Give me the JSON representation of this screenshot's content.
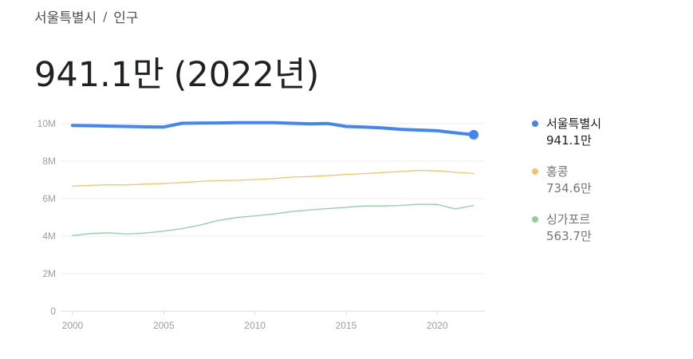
{
  "breadcrumb": {
    "region": "서울특별시",
    "separator": "/",
    "topic": "인구"
  },
  "headline": {
    "value": "941.1만",
    "year": "(2022년)"
  },
  "colors": {
    "seoul": "#4285f4",
    "hongkong": "#f2c46c",
    "singapore": "#8fd0a0",
    "grid": "#eeeeee",
    "axis_text": "#9aa0a6",
    "secondary_text": "#70757a"
  },
  "legend": [
    {
      "name": "서울특별시",
      "value": "941.1만",
      "color": "#4285f4"
    },
    {
      "name": "홍콩",
      "value": "734.6만",
      "color": "#f2c46c"
    },
    {
      "name": "싱가포르",
      "value": "563.7만",
      "color": "#8fd0a0"
    }
  ],
  "chart_data": {
    "type": "line",
    "x": [
      2000,
      2001,
      2002,
      2003,
      2004,
      2005,
      2006,
      2007,
      2008,
      2009,
      2010,
      2011,
      2012,
      2013,
      2014,
      2015,
      2016,
      2017,
      2018,
      2019,
      2020,
      2021,
      2022
    ],
    "series": [
      {
        "name": "서울특별시",
        "color": "#4285f4",
        "values": [
          9.9,
          9.89,
          9.87,
          9.85,
          9.83,
          9.82,
          10.02,
          10.03,
          10.04,
          10.05,
          10.05,
          10.05,
          10.02,
          9.99,
          10.01,
          9.85,
          9.82,
          9.77,
          9.7,
          9.66,
          9.62,
          9.51,
          9.41
        ]
      },
      {
        "name": "홍콩",
        "color": "#f2c46c",
        "values": [
          6.67,
          6.71,
          6.74,
          6.73,
          6.78,
          6.81,
          6.86,
          6.92,
          6.96,
          6.98,
          7.02,
          7.07,
          7.15,
          7.18,
          7.23,
          7.29,
          7.34,
          7.39,
          7.45,
          7.51,
          7.48,
          7.41,
          7.346
        ]
      },
      {
        "name": "싱가포르",
        "color": "#8fd0a0",
        "values": [
          4.03,
          4.14,
          4.18,
          4.11,
          4.17,
          4.27,
          4.4,
          4.59,
          4.84,
          4.99,
          5.08,
          5.18,
          5.31,
          5.4,
          5.47,
          5.54,
          5.61,
          5.61,
          5.64,
          5.7,
          5.69,
          5.45,
          5.637
        ]
      }
    ],
    "ylim": [
      0,
      10
    ],
    "y_ticks": [
      0,
      2,
      4,
      6,
      8,
      10
    ],
    "y_tick_labels": [
      "0",
      "2M",
      "4M",
      "6M",
      "8M",
      "10M"
    ],
    "x_ticks": [
      2000,
      2005,
      2010,
      2015,
      2020
    ],
    "x_tick_labels": [
      "2000",
      "2005",
      "2010",
      "2015",
      "2020"
    ],
    "grid": true,
    "legend_position": "right"
  }
}
